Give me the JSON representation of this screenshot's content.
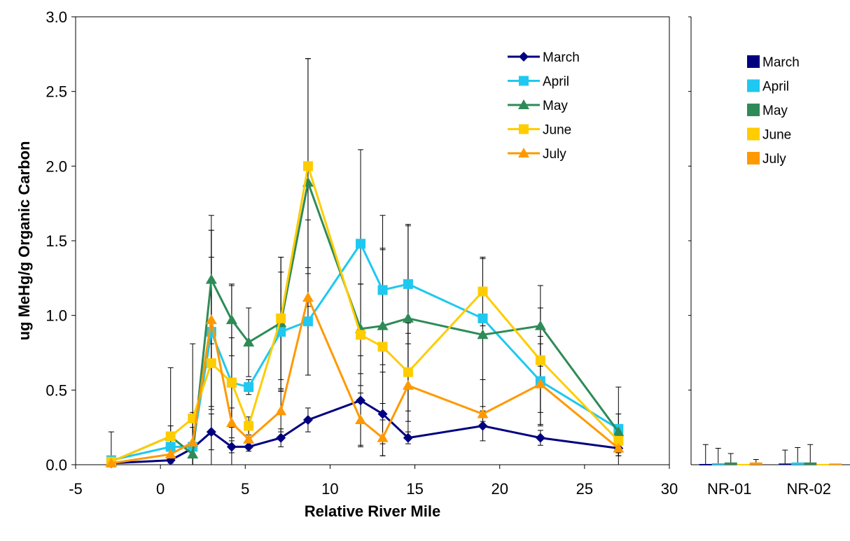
{
  "chart_data": [
    {
      "type": "line",
      "xlabel": "Relative River Mile",
      "ylabel": "ug MeHg/g Organic Carbon",
      "xlim": [
        -5,
        30
      ],
      "ylim": [
        0,
        3.0
      ],
      "x_ticks": [
        "-5",
        "0",
        "5",
        "10",
        "15",
        "20",
        "25",
        "30"
      ],
      "y_ticks": [
        "0.0",
        "0.5",
        "1.0",
        "1.5",
        "2.0",
        "2.5",
        "3.0"
      ],
      "grid": false,
      "legend_position": "top-right",
      "series": [
        {
          "name": "March",
          "color": "#000080",
          "marker": "diamond",
          "x": [
            -2.9,
            0.6,
            1.9,
            3.0,
            4.2,
            5.2,
            7.1,
            8.7,
            11.8,
            13.1,
            14.6,
            19.0,
            22.4,
            27.0
          ],
          "y": [
            0.01,
            0.03,
            0.11,
            0.22,
            0.12,
            0.12,
            0.18,
            0.3,
            0.43,
            0.34,
            0.18,
            0.26,
            0.18,
            0.11
          ],
          "err": [
            0.0,
            0.02,
            0.04,
            0.12,
            0.04,
            0.03,
            0.06,
            0.08,
            0.3,
            0.28,
            0.04,
            0.1,
            0.05,
            0.03
          ]
        },
        {
          "name": "April",
          "color": "#1FC8F0",
          "marker": "square",
          "x": [
            -2.9,
            0.6,
            1.9,
            3.0,
            4.2,
            5.2,
            7.1,
            8.7,
            11.8,
            13.1,
            14.6,
            19.0,
            22.4,
            27.0
          ],
          "y": [
            0.03,
            0.12,
            0.12,
            0.89,
            0.55,
            0.52,
            0.89,
            0.96,
            1.48,
            1.17,
            1.21,
            0.98,
            0.56,
            0.24
          ],
          "err": [
            0.0,
            0.1,
            0.2,
            0.5,
            0.3,
            0.05,
            0.4,
            0.36,
            0.63,
            0.5,
            0.4,
            0.41,
            0.3,
            0.1
          ]
        },
        {
          "name": "May",
          "color": "#2E8B57",
          "marker": "triangle",
          "x": [
            -2.9,
            0.6,
            1.9,
            3.0,
            4.2,
            5.2,
            7.1,
            8.7,
            11.8,
            13.1,
            14.6,
            19.0,
            22.4,
            27.0
          ],
          "y": [
            0.02,
            0.19,
            0.07,
            1.24,
            0.97,
            0.82,
            0.95,
            1.89,
            0.91,
            0.93,
            0.98,
            0.87,
            0.93,
            0.22
          ],
          "err": [
            0.2,
            0.07,
            0.18,
            0.43,
            0.24,
            0.23,
            0.44,
            0.83,
            0.3,
            0.52,
            0.62,
            0.51,
            0.27,
            0.3
          ]
        },
        {
          "name": "June",
          "color": "#FFCC00",
          "marker": "square",
          "x": [
            -2.9,
            0.6,
            1.9,
            3.0,
            4.2,
            5.2,
            7.1,
            8.7,
            11.8,
            13.1,
            14.6,
            19.0,
            22.4,
            27.0
          ],
          "y": [
            0.02,
            0.19,
            0.31,
            0.68,
            0.55,
            0.26,
            0.98,
            2.0,
            0.87,
            0.79,
            0.62,
            1.16,
            0.7,
            0.16
          ],
          "err": [
            0.0,
            0.46,
            0.5,
            0.89,
            0.65,
            0.06,
            0.41,
            0.72,
            0.34,
            0.65,
            0.33,
            0.23,
            0.35,
            0.1
          ]
        },
        {
          "name": "July",
          "color": "#FF9900",
          "marker": "triangle",
          "x": [
            -2.9,
            0.6,
            1.9,
            3.0,
            4.2,
            5.2,
            7.1,
            8.7,
            11.8,
            13.1,
            14.6,
            19.0,
            22.4,
            27.0
          ],
          "y": [
            0.01,
            0.07,
            0.15,
            0.97,
            0.28,
            0.17,
            0.36,
            1.12,
            0.3,
            0.18,
            0.53,
            0.34,
            0.54,
            0.11
          ],
          "err": [
            0.0,
            0.05,
            0.2,
            0.6,
            0.1,
            0.06,
            0.14,
            0.52,
            0.18,
            0.12,
            0.35,
            0.05,
            0.27,
            0.05
          ]
        }
      ]
    },
    {
      "type": "bar",
      "categories": [
        "NR-01",
        "NR-02"
      ],
      "ylim": [
        0,
        3.0
      ],
      "legend_position": "top-right",
      "series": [
        {
          "name": "March",
          "color": "#000080",
          "values": [
            0.005,
            0.008
          ],
          "err": [
            0.13,
            0.09
          ]
        },
        {
          "name": "April",
          "color": "#1FC8F0",
          "values": [
            0.01,
            0.015
          ],
          "err": [
            0.1,
            0.1
          ]
        },
        {
          "name": "May",
          "color": "#2E8B57",
          "values": [
            0.015,
            0.015
          ],
          "err": [
            0.06,
            0.12
          ]
        },
        {
          "name": "June",
          "color": "#FFCC00",
          "values": [
            0.005,
            0.005
          ],
          "err": [
            0.0,
            0.0
          ]
        },
        {
          "name": "July",
          "color": "#FF9900",
          "values": [
            0.015,
            0.008
          ],
          "err": [
            0.02,
            0.0
          ]
        }
      ]
    }
  ]
}
